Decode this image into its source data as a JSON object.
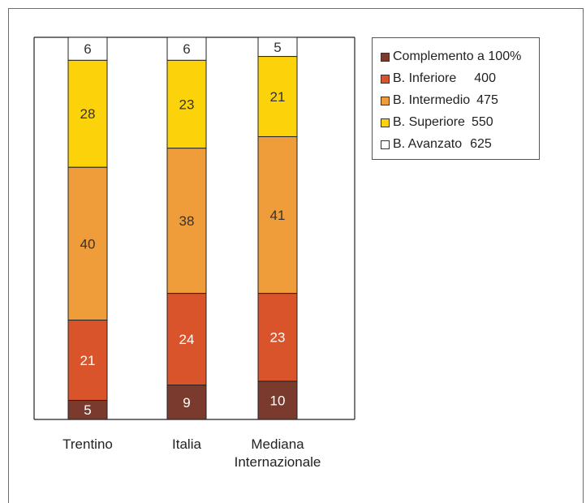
{
  "chart_data": {
    "type": "bar",
    "stacked": true,
    "categories": [
      "Trentino",
      "Italia",
      "Mediana Internazionale"
    ],
    "series": [
      {
        "name": "Complemento a 100%",
        "color": "#7a3b2e",
        "label_color": "#ffffff",
        "values": [
          5,
          9,
          10
        ]
      },
      {
        "name": "B. Inferiore",
        "value_label": "400",
        "color": "#d9542a",
        "label_color": "#ffffff",
        "values": [
          21,
          24,
          23
        ]
      },
      {
        "name": "B. Intermedio",
        "value_label": "475",
        "color": "#ef9d3a",
        "label_color": "#333333",
        "values": [
          40,
          38,
          41
        ]
      },
      {
        "name": "B. Superiore",
        "value_label": "550",
        "color": "#fcd20a",
        "label_color": "#333333",
        "values": [
          28,
          23,
          21
        ]
      },
      {
        "name": "B. Avanzato",
        "value_label": "625",
        "color": "#ffffff",
        "label_color": "#333333",
        "values": [
          6,
          6,
          5
        ]
      }
    ],
    "ylim": [
      0,
      100
    ],
    "legend_position": "top-right",
    "grid": false
  }
}
